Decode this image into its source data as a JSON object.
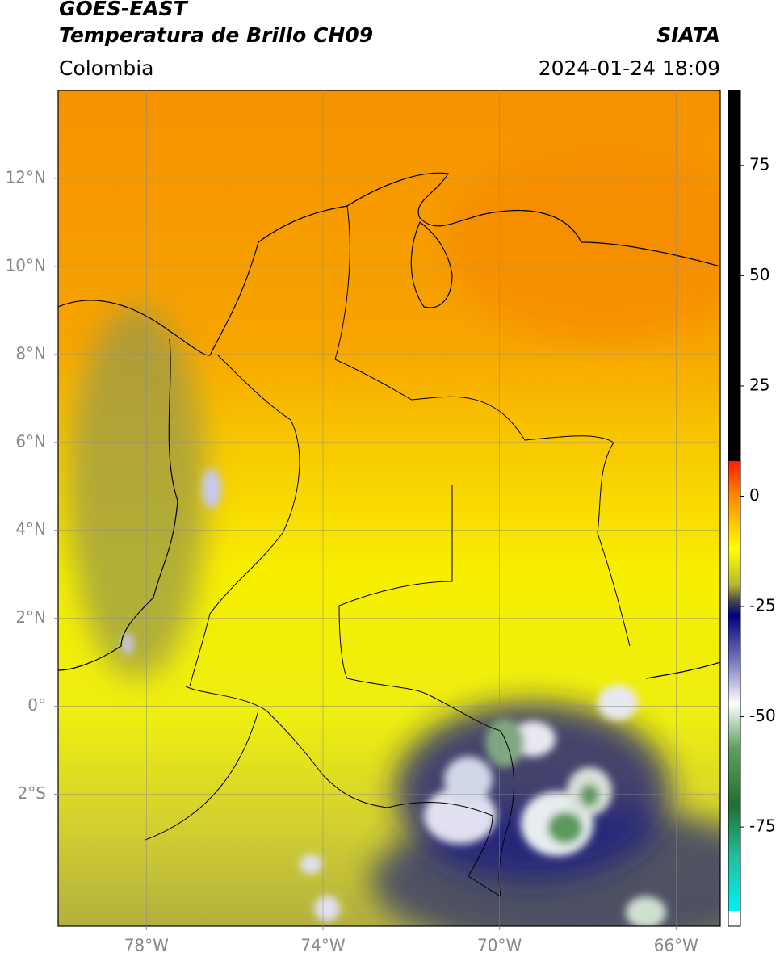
{
  "chart_data": {
    "type": "map",
    "title": "GOES-EAST",
    "subtitle": "Temperatura de Brillo CH09",
    "source": "SIATA",
    "region": "Colombia",
    "datetime": "2024-01-24 18:09",
    "xlim": [
      -80,
      -65
    ],
    "ylim": [
      -5,
      14
    ],
    "xticks": [
      {
        "value": -78,
        "label": "78°W"
      },
      {
        "value": -74,
        "label": "74°W"
      },
      {
        "value": -70,
        "label": "70°W"
      },
      {
        "value": -66,
        "label": "66°W"
      }
    ],
    "yticks": [
      {
        "value": 12,
        "label": "12°N"
      },
      {
        "value": 10,
        "label": "10°N"
      },
      {
        "value": 8,
        "label": "8°N"
      },
      {
        "value": 6,
        "label": "6°N"
      },
      {
        "value": 4,
        "label": "4°N"
      },
      {
        "value": 2,
        "label": "2°N"
      },
      {
        "value": 0,
        "label": "0°"
      },
      {
        "value": -2,
        "label": "2°S"
      }
    ],
    "grid": true,
    "colorbar": {
      "lim": [
        -97.5,
        92
      ],
      "ticks": [
        75,
        50,
        25,
        0,
        -25,
        -50,
        -75
      ],
      "stops": [
        {
          "value": 92,
          "color": "#000000"
        },
        {
          "value": 8,
          "color": "#000000"
        },
        {
          "value": 8,
          "color": "#ff1a00"
        },
        {
          "value": 0,
          "color": "#ff8a00"
        },
        {
          "value": -12,
          "color": "#ffff00"
        },
        {
          "value": -20,
          "color": "#b8b830"
        },
        {
          "value": -24,
          "color": "#404050"
        },
        {
          "value": -27,
          "color": "#000080"
        },
        {
          "value": -38,
          "color": "#8080c0"
        },
        {
          "value": -47,
          "color": "#ffffff"
        },
        {
          "value": -57,
          "color": "#60a060"
        },
        {
          "value": -70,
          "color": "#207030"
        },
        {
          "value": -82,
          "color": "#20c0a0"
        },
        {
          "value": -94,
          "color": "#00f0f0"
        },
        {
          "value": -94,
          "color": "#ffffff"
        },
        {
          "value": -97.5,
          "color": "#ffffff"
        }
      ]
    }
  }
}
